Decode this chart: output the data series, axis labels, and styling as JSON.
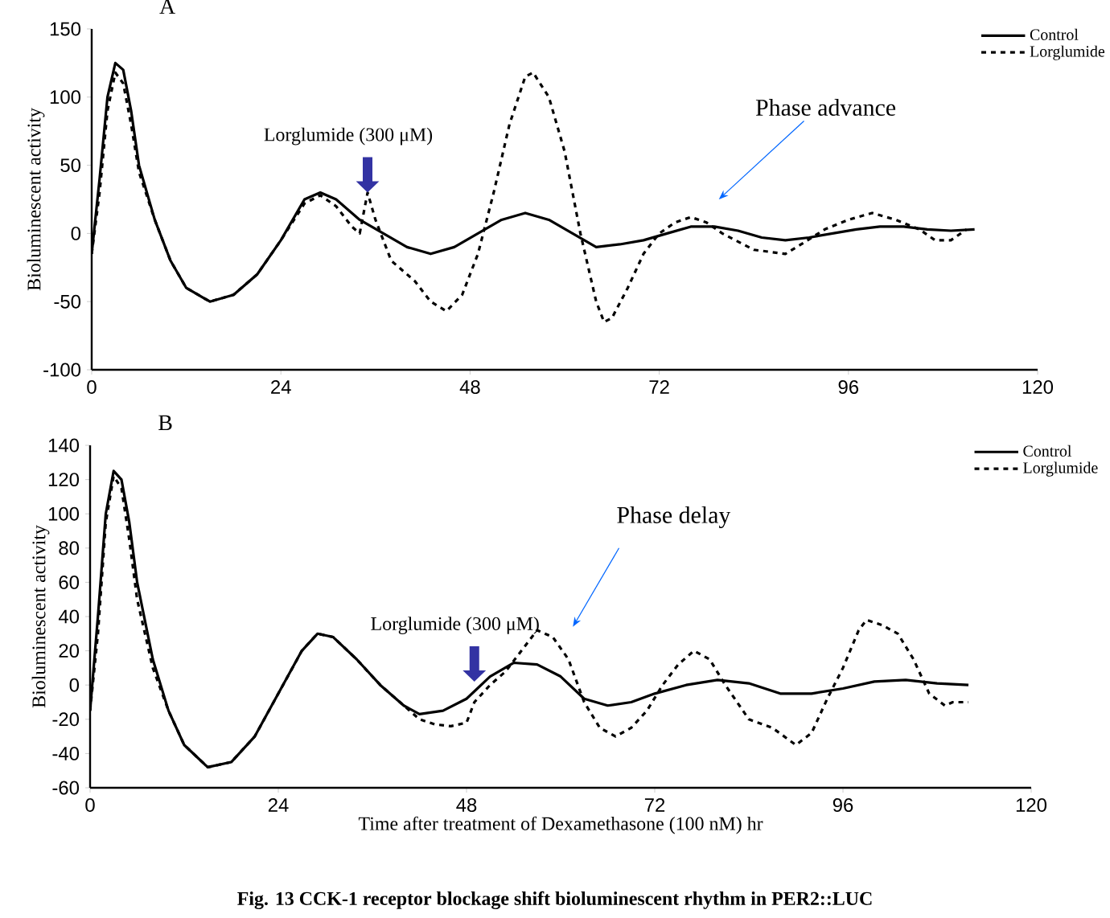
{
  "chart_data": [
    {
      "type": "line",
      "title": "A",
      "ylabel": "Bioluminescent activity",
      "xlim": [
        0,
        120
      ],
      "xticks": [
        0,
        24,
        48,
        72,
        96,
        120
      ],
      "ylim": [
        -100,
        150
      ],
      "yticks": [
        -100,
        -50,
        0,
        50,
        100,
        150
      ],
      "legend": "top right",
      "grid": false,
      "series": [
        {
          "name": "Control",
          "color": "#000000",
          "line_style": "solid",
          "x": [
            0,
            1,
            2,
            3,
            4,
            5,
            6,
            8,
            10,
            12,
            15,
            18,
            21,
            24,
            27,
            29,
            31,
            34,
            37,
            40,
            43,
            46,
            49,
            52,
            55,
            58,
            61,
            64,
            67,
            70,
            73,
            76,
            79,
            82,
            85,
            88,
            91,
            94,
            97,
            100,
            103,
            106,
            109,
            112
          ],
          "values": [
            -15,
            40,
            100,
            125,
            120,
            90,
            50,
            10,
            -20,
            -40,
            -50,
            -45,
            -30,
            -5,
            25,
            30,
            25,
            10,
            0,
            -10,
            -15,
            -10,
            0,
            10,
            15,
            10,
            0,
            -10,
            -8,
            -5,
            0,
            5,
            5,
            2,
            -3,
            -5,
            -3,
            0,
            3,
            5,
            5,
            3,
            2,
            3
          ]
        },
        {
          "name": "Lorglumide",
          "color": "#000000",
          "line_style": "dashed",
          "x": [
            0,
            1,
            2,
            3,
            4,
            5,
            6,
            8,
            10,
            12,
            15,
            18,
            21,
            24,
            27,
            29,
            31,
            33,
            34,
            35,
            36,
            38,
            41,
            43,
            45,
            47,
            49,
            51,
            53,
            55,
            56,
            58,
            60,
            62,
            64,
            65,
            66,
            68,
            70,
            72,
            74,
            76,
            78,
            80,
            84,
            88,
            90,
            93,
            96,
            99,
            102,
            105,
            107,
            109,
            111
          ],
          "values": [
            -15,
            30,
            90,
            118,
            110,
            80,
            45,
            10,
            -20,
            -40,
            -50,
            -45,
            -30,
            -5,
            22,
            28,
            20,
            5,
            0,
            30,
            10,
            -20,
            -35,
            -50,
            -57,
            -45,
            -15,
            30,
            80,
            115,
            118,
            100,
            60,
            0,
            -50,
            -65,
            -62,
            -40,
            -15,
            0,
            8,
            12,
            8,
            0,
            -12,
            -15,
            -8,
            3,
            10,
            15,
            10,
            3,
            -5,
            -5,
            3
          ]
        }
      ],
      "annotations": [
        {
          "text": "Lorglumide (300 μM)",
          "x": 35,
          "y": 30
        },
        "Phase advance"
      ]
    },
    {
      "type": "line",
      "title": "B",
      "ylabel": "Bioluminescent activity",
      "xlabel": "Time after treatment of Dexamethasone (100 nM) hr",
      "xlim": [
        0,
        120
      ],
      "xticks": [
        0,
        24,
        48,
        72,
        96,
        120
      ],
      "ylim": [
        -60,
        140
      ],
      "yticks": [
        -60,
        -40,
        -20,
        0,
        20,
        40,
        60,
        80,
        100,
        120,
        140
      ],
      "legend": "top right",
      "grid": false,
      "series": [
        {
          "name": "Control",
          "color": "#000000",
          "line_style": "solid",
          "x": [
            0,
            1,
            2,
            3,
            4,
            5,
            6,
            8,
            10,
            12,
            15,
            18,
            21,
            24,
            27,
            29,
            31,
            34,
            37,
            40,
            42,
            45,
            48,
            51,
            54,
            57,
            60,
            63,
            66,
            69,
            72,
            76,
            80,
            84,
            88,
            92,
            96,
            100,
            104,
            108,
            112
          ],
          "values": [
            -15,
            40,
            100,
            125,
            120,
            95,
            60,
            15,
            -15,
            -35,
            -48,
            -45,
            -30,
            -5,
            20,
            30,
            28,
            15,
            0,
            -12,
            -17,
            -15,
            -8,
            5,
            13,
            12,
            5,
            -8,
            -12,
            -10,
            -5,
            0,
            3,
            1,
            -5,
            -5,
            -2,
            2,
            3,
            1,
            0
          ]
        },
        {
          "name": "Lorglumide",
          "color": "#000000",
          "line_style": "dashed",
          "x": [
            0,
            1,
            2,
            3,
            4,
            5,
            6,
            8,
            10,
            12,
            15,
            18,
            21,
            24,
            27,
            29,
            31,
            34,
            37,
            40,
            42,
            44,
            46,
            48,
            49,
            51,
            53,
            55,
            57,
            59,
            61,
            63,
            65,
            67,
            69,
            71,
            73,
            75,
            77,
            79,
            81,
            84,
            87,
            90,
            92,
            94,
            96,
            98,
            99,
            101,
            103,
            105,
            107,
            109,
            110,
            112
          ],
          "values": [
            -15,
            30,
            95,
            122,
            115,
            85,
            50,
            10,
            -15,
            -35,
            -48,
            -45,
            -30,
            -5,
            20,
            30,
            28,
            15,
            0,
            -12,
            -20,
            -23,
            -24,
            -22,
            -10,
            0,
            8,
            20,
            32,
            28,
            15,
            -10,
            -25,
            -30,
            -25,
            -15,
            0,
            12,
            20,
            15,
            0,
            -20,
            -25,
            -35,
            -28,
            -8,
            10,
            32,
            38,
            35,
            30,
            15,
            -5,
            -12,
            -10,
            -10
          ]
        }
      ],
      "annotations": [
        {
          "text": "Lorglumide (300 μM)",
          "x": 49,
          "y": 2
        },
        "Phase delay",
        "Fig. 13 CCK-1 receptor blockage shift bioluminescent rhythm in PER2::LUC"
      ]
    }
  ]
}
